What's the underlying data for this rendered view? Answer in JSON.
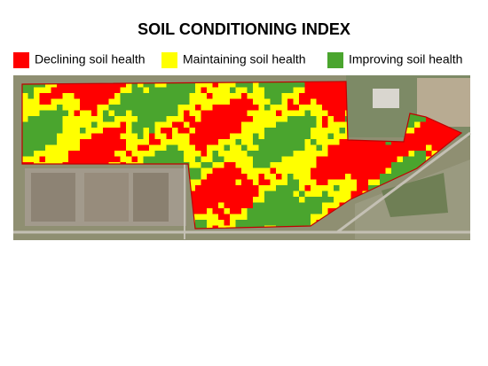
{
  "title": "SOIL CONDITIONING INDEX",
  "legend": [
    {
      "label": "Declining soil health",
      "color": "#ff0000"
    },
    {
      "label": "Maintaining soil health",
      "color": "#ffff00"
    },
    {
      "label": "Improving soil health",
      "color": "#4aa52e"
    }
  ]
}
